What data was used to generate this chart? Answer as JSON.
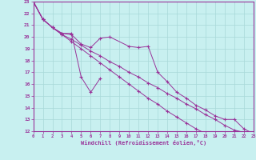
{
  "xlabel": "Windchill (Refroidissement éolien,°C)",
  "bg_color": "#c8f0f0",
  "grid_color": "#a8d8d8",
  "line_color": "#993399",
  "xlim": [
    0,
    23
  ],
  "ylim": [
    12,
    23
  ],
  "xticks": [
    0,
    1,
    2,
    3,
    4,
    5,
    6,
    7,
    8,
    9,
    10,
    11,
    12,
    13,
    14,
    15,
    16,
    17,
    18,
    19,
    20,
    21,
    22,
    23
  ],
  "yticks": [
    12,
    13,
    14,
    15,
    16,
    17,
    18,
    19,
    20,
    21,
    22,
    23
  ],
  "series": [
    [
      23.0,
      21.5,
      20.8,
      20.3,
      20.3,
      16.6,
      15.3,
      16.5,
      null,
      null,
      null,
      null,
      null,
      null,
      null,
      null,
      null,
      null,
      null,
      null,
      null,
      null,
      null,
      null
    ],
    [
      23.0,
      21.5,
      20.8,
      20.3,
      20.2,
      19.4,
      19.1,
      19.9,
      20.0,
      null,
      19.2,
      19.1,
      19.2,
      17.0,
      16.2,
      15.3,
      14.8,
      14.2,
      13.8,
      13.3,
      13.0,
      13.0,
      12.2,
      11.8
    ],
    [
      23.0,
      21.5,
      20.8,
      20.2,
      19.8,
      19.3,
      18.8,
      18.4,
      17.9,
      17.5,
      17.0,
      16.6,
      16.1,
      15.7,
      15.2,
      14.8,
      14.3,
      13.9,
      13.4,
      13.0,
      12.5,
      12.1,
      11.9,
      11.8
    ],
    [
      23.0,
      21.5,
      20.8,
      20.2,
      19.6,
      19.0,
      18.4,
      17.8,
      17.2,
      16.6,
      16.0,
      15.4,
      14.8,
      14.3,
      13.7,
      13.2,
      12.7,
      12.2,
      11.8,
      null,
      null,
      null,
      null,
      null
    ]
  ]
}
